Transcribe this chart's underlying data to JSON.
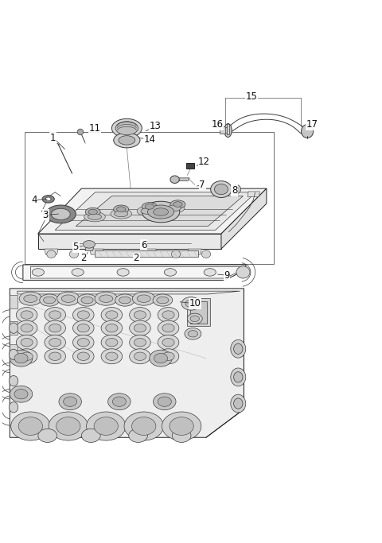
{
  "bg": "#ffffff",
  "lc": "#3a3a3a",
  "lc2": "#222222",
  "fig_w": 4.8,
  "fig_h": 6.83,
  "dpi": 100,
  "label_fs": 8.5,
  "parts": {
    "1": [
      0.135,
      0.855,
      0.17,
      0.82
    ],
    "2a": [
      0.215,
      0.535,
      0.23,
      0.555
    ],
    "2b": [
      0.355,
      0.535,
      0.365,
      0.553
    ],
    "3": [
      0.115,
      0.65,
      0.155,
      0.653
    ],
    "4": [
      0.085,
      0.69,
      0.125,
      0.692
    ],
    "5": [
      0.195,
      0.565,
      0.218,
      0.568
    ],
    "6": [
      0.375,
      0.57,
      0.36,
      0.568
    ],
    "7": [
      0.53,
      0.73,
      0.51,
      0.725
    ],
    "8": [
      0.615,
      0.715,
      0.6,
      0.718
    ],
    "9": [
      0.595,
      0.49,
      0.565,
      0.493
    ],
    "10": [
      0.51,
      0.415,
      0.465,
      0.42
    ],
    "11": [
      0.245,
      0.88,
      0.225,
      0.868
    ],
    "12": [
      0.535,
      0.79,
      0.51,
      0.778
    ],
    "13": [
      0.405,
      0.885,
      0.375,
      0.87
    ],
    "14": [
      0.39,
      0.85,
      0.357,
      0.855
    ],
    "15": [
      0.66,
      0.963,
      0.655,
      0.96
    ],
    "16": [
      0.57,
      0.89,
      0.568,
      0.882
    ],
    "17": [
      0.82,
      0.89,
      0.808,
      0.882
    ]
  }
}
